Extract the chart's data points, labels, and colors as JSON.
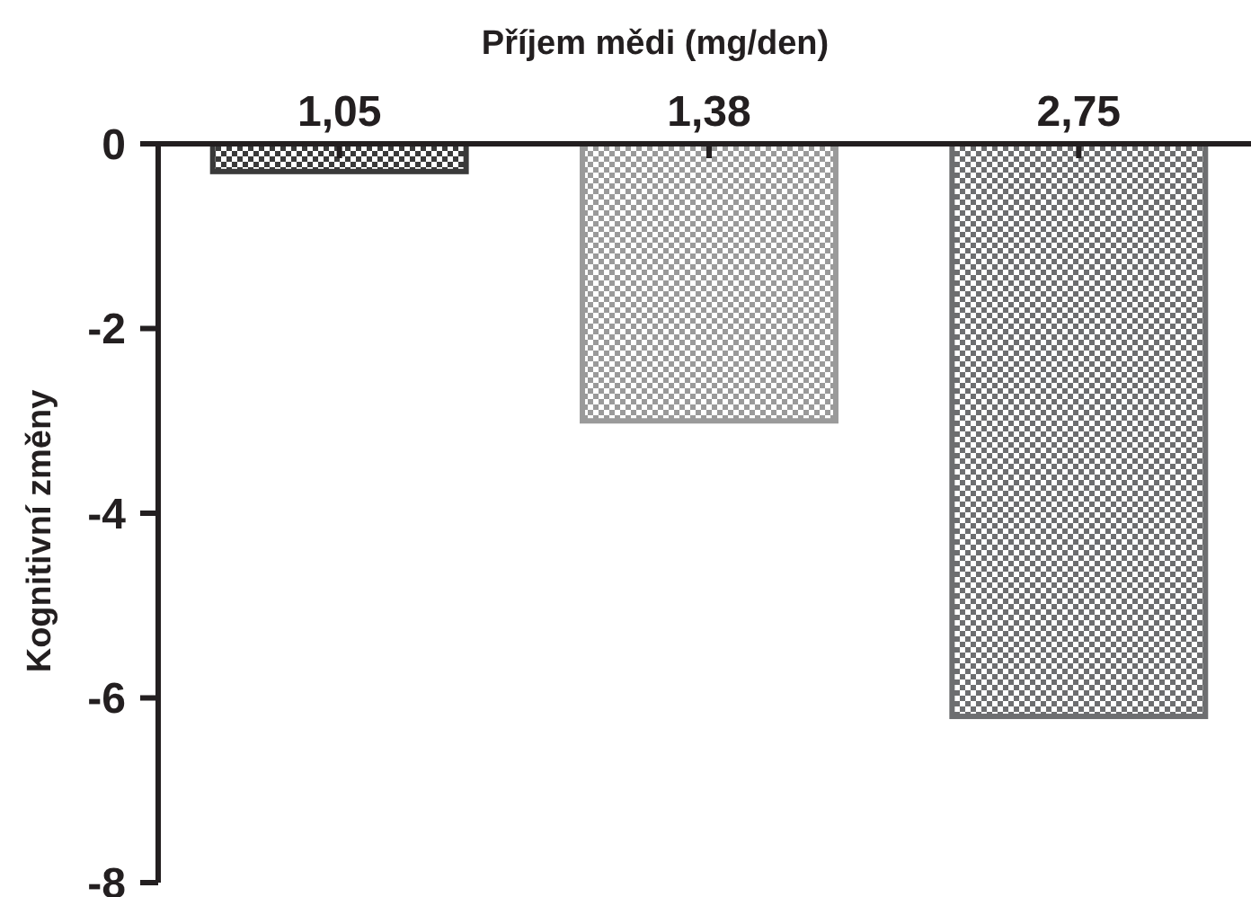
{
  "chart_data": {
    "type": "bar",
    "xlabel": "Příjem mědi (mg/den)",
    "ylabel": "Kognitivní změny",
    "categories": [
      "1,05",
      "1,38",
      "2,75"
    ],
    "values": [
      -0.3,
      -3.0,
      -6.2
    ],
    "colors": [
      "#3a3a3a",
      "#9a9a9a",
      "#6d6e70"
    ],
    "ylim": [
      -8,
      0
    ],
    "yticks": [
      0,
      -2,
      -4,
      -6,
      -8
    ]
  }
}
